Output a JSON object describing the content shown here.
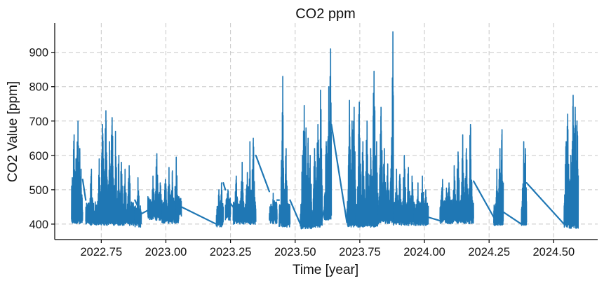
{
  "chart_data": {
    "type": "line",
    "title": "CO2 ppm",
    "xlabel": "Time [year]",
    "ylabel": "CO2 Value [ppm]",
    "xlim": [
      2022.57,
      2024.67
    ],
    "ylim": [
      355,
      985
    ],
    "x_ticks": [
      2022.75,
      2023.0,
      2023.25,
      2023.5,
      2023.75,
      2024.0,
      2024.25,
      2024.5
    ],
    "x_tick_labels": [
      "2022.75",
      "2023.00",
      "2023.25",
      "2023.50",
      "2023.75",
      "2024.00",
      "2024.25",
      "2024.50"
    ],
    "y_ticks": [
      400,
      500,
      600,
      700,
      800,
      900
    ],
    "y_tick_labels": [
      "400",
      "500",
      "600",
      "700",
      "800",
      "900"
    ],
    "grid": true,
    "series": [
      {
        "color": "#1f77b4",
        "segments": [
          {
            "start": 2022.635,
            "end": 2022.678,
            "base": 410,
            "peaks": [
              [
                2022.638,
                535
              ],
              [
                2022.645,
                660
              ],
              [
                2022.652,
                590
              ],
              [
                2022.66,
                700
              ],
              [
                2022.667,
                620
              ],
              [
                2022.672,
                560
              ]
            ]
          },
          {
            "start": 2022.69,
            "end": 2022.88,
            "base": 405,
            "peaks": [
              [
                2022.712,
                560
              ],
              [
                2022.742,
                590
              ],
              [
                2022.755,
                690
              ],
              [
                2022.768,
                730
              ],
              [
                2022.782,
                640
              ],
              [
                2022.792,
                710
              ],
              [
                2022.805,
                670
              ],
              [
                2022.818,
                600
              ],
              [
                2022.828,
                580
              ],
              [
                2022.842,
                560
              ],
              [
                2022.858,
                570
              ]
            ]
          },
          {
            "start": 2022.88,
            "end": 2022.905,
            "base": 400,
            "peaks": [
              [
                2022.892,
                535
              ]
            ]
          },
          {
            "start": 2022.93,
            "end": 2022.985,
            "base": 420,
            "peaks": [
              [
                2022.95,
                540
              ],
              [
                2022.965,
                605
              ],
              [
                2022.978,
                520
              ]
            ]
          },
          {
            "start": 2022.985,
            "end": 2023.05,
            "base": 410,
            "peaks": [
              [
                2022.998,
                530
              ],
              [
                2023.012,
                565
              ],
              [
                2023.025,
                555
              ],
              [
                2023.04,
                595
              ]
            ]
          },
          {
            "start": 2023.04,
            "end": 2023.06,
            "base": 430,
            "peaks": [
              [
                2023.05,
                480
              ]
            ]
          },
          {
            "start": 2023.195,
            "end": 2023.222,
            "base": 400,
            "peaks": [
              [
                2023.205,
                500
              ],
              [
                2023.215,
                520
              ]
            ]
          },
          {
            "start": 2023.23,
            "end": 2023.25,
            "base": 420,
            "peaks": [
              [
                2023.24,
                500
              ]
            ]
          },
          {
            "start": 2023.26,
            "end": 2023.348,
            "base": 408,
            "peaks": [
              [
                2023.272,
                540
              ],
              [
                2023.295,
                580
              ],
              [
                2023.315,
                550
              ],
              [
                2023.325,
                640
              ],
              [
                2023.338,
                650
              ]
            ]
          },
          {
            "start": 2023.4,
            "end": 2023.43,
            "base": 410,
            "peaks": [
              [
                2023.415,
                490
              ]
            ]
          },
          {
            "start": 2023.438,
            "end": 2023.48,
            "base": 400,
            "peaks": [
              [
                2023.452,
                830
              ],
              [
                2023.465,
                620
              ]
            ]
          },
          {
            "start": 2023.52,
            "end": 2023.565,
            "base": 395,
            "peaks": [
              [
                2023.528,
                600
              ],
              [
                2023.535,
                745
              ],
              [
                2023.542,
                680
              ],
              [
                2023.55,
                650
              ],
              [
                2023.558,
                600
              ]
            ]
          },
          {
            "start": 2023.565,
            "end": 2023.605,
            "base": 400,
            "peaks": [
              [
                2023.575,
                620
              ],
              [
                2023.588,
                690
              ],
              [
                2023.598,
                790
              ]
            ]
          },
          {
            "start": 2023.612,
            "end": 2023.64,
            "base": 420,
            "peaks": [
              [
                2023.62,
                640
              ],
              [
                2023.63,
                800
              ],
              [
                2023.637,
                910
              ]
            ]
          },
          {
            "start": 2023.7,
            "end": 2023.735,
            "base": 400,
            "peaks": [
              [
                2023.71,
                760
              ],
              [
                2023.72,
                700
              ],
              [
                2023.728,
                740
              ]
            ]
          },
          {
            "start": 2023.735,
            "end": 2023.82,
            "base": 400,
            "peaks": [
              [
                2023.748,
                755
              ],
              [
                2023.762,
                640
              ],
              [
                2023.778,
                700
              ],
              [
                2023.792,
                620
              ],
              [
                2023.805,
                845
              ],
              [
                2023.815,
                640
              ]
            ]
          },
          {
            "start": 2023.82,
            "end": 2023.88,
            "base": 410,
            "peaks": [
              [
                2023.832,
                740
              ],
              [
                2023.845,
                620
              ],
              [
                2023.858,
                575
              ],
              [
                2023.872,
                600
              ],
              [
                2023.878,
                960
              ]
            ]
          },
          {
            "start": 2023.88,
            "end": 2023.96,
            "base": 405,
            "peaks": [
              [
                2023.892,
                560
              ],
              [
                2023.905,
                545
              ],
              [
                2023.922,
                600
              ],
              [
                2023.938,
                565
              ],
              [
                2023.952,
                540
              ]
            ]
          },
          {
            "start": 2023.96,
            "end": 2024.015,
            "base": 405,
            "peaks": [
              [
                2023.975,
                520
              ],
              [
                2023.992,
                540
              ],
              [
                2024.005,
                500
              ]
            ]
          },
          {
            "start": 2024.06,
            "end": 2024.1,
            "base": 410,
            "peaks": [
              [
                2024.07,
                530
              ],
              [
                2024.085,
                505
              ],
              [
                2024.095,
                520
              ]
            ]
          },
          {
            "start": 2024.1,
            "end": 2024.19,
            "base": 410,
            "peaks": [
              [
                2024.115,
                570
              ],
              [
                2024.13,
                610
              ],
              [
                2024.148,
                660
              ],
              [
                2024.162,
                620
              ],
              [
                2024.178,
                690
              ]
            ]
          },
          {
            "start": 2024.268,
            "end": 2024.305,
            "base": 405,
            "peaks": [
              [
                2024.28,
                560
              ],
              [
                2024.292,
                620
              ],
              [
                2024.3,
                675
              ]
            ]
          },
          {
            "start": 2024.375,
            "end": 2024.395,
            "base": 405,
            "peaks": [
              [
                2024.384,
                640
              ],
              [
                2024.39,
                620
              ]
            ]
          },
          {
            "start": 2024.54,
            "end": 2024.56,
            "base": 400,
            "peaks": [
              [
                2024.548,
                640
              ],
              [
                2024.554,
                720
              ]
            ]
          },
          {
            "start": 2024.56,
            "end": 2024.595,
            "base": 395,
            "peaks": [
              [
                2024.566,
                600
              ],
              [
                2024.575,
                775
              ],
              [
                2024.583,
                740
              ],
              [
                2024.59,
                700
              ]
            ]
          }
        ],
        "connectors": [
          [
            [
              2022.678,
              530
            ],
            [
              2022.69,
              470
            ]
          ],
          [
            [
              2022.88,
              470
            ],
            [
              2022.905,
              430
            ]
          ],
          [
            [
              2022.905,
              430
            ],
            [
              2022.93,
              440
            ]
          ],
          [
            [
              2023.06,
              450
            ],
            [
              2023.195,
              400
            ]
          ],
          [
            [
              2023.222,
              520
            ],
            [
              2023.23,
              500
            ]
          ],
          [
            [
              2023.25,
              460
            ],
            [
              2023.26,
              450
            ]
          ],
          [
            [
              2023.348,
              600
            ],
            [
              2023.4,
              495
            ]
          ],
          [
            [
              2023.43,
              470
            ],
            [
              2023.438,
              470
            ]
          ],
          [
            [
              2023.48,
              470
            ],
            [
              2023.52,
              400
            ]
          ],
          [
            [
              2023.605,
              420
            ],
            [
              2023.612,
              440
            ]
          ],
          [
            [
              2023.64,
              690
            ],
            [
              2023.7,
              405
            ]
          ],
          [
            [
              2024.015,
              420
            ],
            [
              2024.06,
              410
            ]
          ],
          [
            [
              2024.19,
              525
            ],
            [
              2024.268,
              420
            ]
          ],
          [
            [
              2024.305,
              435
            ],
            [
              2024.375,
              400
            ]
          ],
          [
            [
              2024.395,
              520
            ],
            [
              2024.54,
              400
            ]
          ]
        ]
      }
    ]
  }
}
